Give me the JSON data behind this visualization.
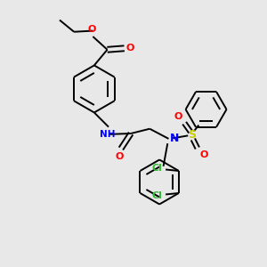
{
  "bg_color": "#e8e8e8",
  "bond_color": "#000000",
  "O_color": "#ff0000",
  "N_color": "#0000ff",
  "S_color": "#cccc00",
  "Cl_color": "#33bb33",
  "lw": 1.4,
  "dbo": 0.12,
  "xlim": [
    0,
    10
  ],
  "ylim": [
    0,
    10
  ]
}
